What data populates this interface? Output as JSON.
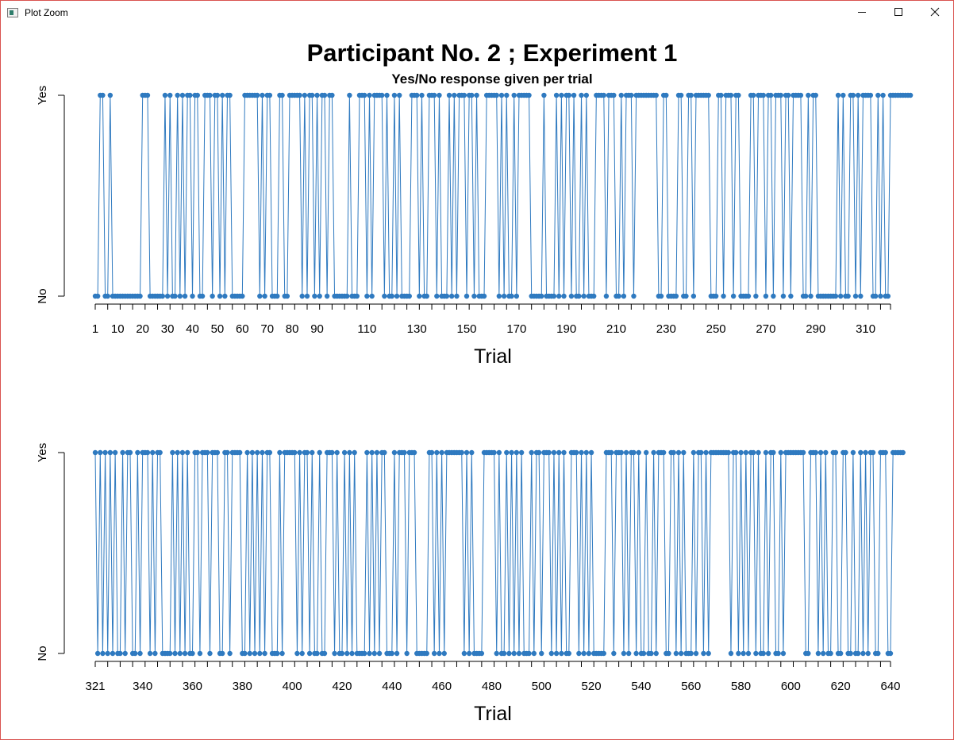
{
  "window": {
    "title": "Plot Zoom",
    "minimize_icon": "minimize-icon",
    "maximize_icon": "maximize-icon",
    "close_icon": "close-icon"
  },
  "figure": {
    "title": "Participant No.  2 ; Experiment 1",
    "subtitle": "Yes/No response given per trial"
  },
  "colors": {
    "series": "#2f7ac0",
    "axis": "#000000"
  },
  "chart_data": [
    {
      "type": "line",
      "xlabel": "Trial",
      "xlim": [
        1,
        320
      ],
      "x_ticks": [
        1,
        10,
        20,
        30,
        40,
        50,
        60,
        70,
        80,
        90,
        110,
        130,
        150,
        170,
        190,
        210,
        230,
        250,
        270,
        290,
        310
      ],
      "y_ticks": [
        "No",
        "Yes"
      ],
      "y_values_encoding": {
        "No": 0,
        "Yes": 1
      },
      "markers": true,
      "responses": "0011001000000000000111000000101001010110110011101101011000001111110101100011001111101011010110110000001000111010111101001010000111010011101000101011101101000111110101001011111000001000010101101001010001111011100101110111111111001100001100110111111000110111011000011011101101110110111100101100000000101001101011110010100111111111"
    },
    {
      "type": "line",
      "xlabel": "Trial",
      "xlim": [
        321,
        640
      ],
      "x_ticks": [
        321,
        340,
        360,
        380,
        400,
        420,
        440,
        460,
        480,
        500,
        520,
        540,
        560,
        580,
        600,
        620,
        640
      ],
      "y_ticks": [
        "No",
        "Yes"
      ],
      "y_values_encoding": {
        "No": 0,
        "Yes": 1
      },
      "markers": true,
      "responses": "1010101010010110010111010110000101010100110111011100110111100101010101100010111110101101001001110100101010000101010110001011101110000011010101111111010100001111101001010101000101101110101010011101010100000111011101011010010010111001101010001011010111111110110101011010010110010111111110011101010011001100100101011001110011111"
    }
  ]
}
